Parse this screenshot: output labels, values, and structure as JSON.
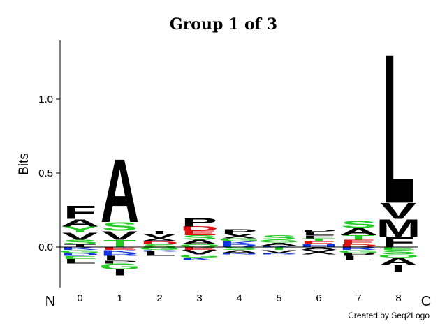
{
  "chart_data": {
    "type": "sequence-logo",
    "title": "Group 1 of 3",
    "ylabel": "Bits",
    "yticks": [
      0.0,
      0.5,
      1.0
    ],
    "ytick_labels": [
      "0.0",
      "0.5",
      "1.0"
    ],
    "ylim": [
      -0.27,
      1.4
    ],
    "positions": [
      "0",
      "1",
      "2",
      "3",
      "4",
      "5",
      "6",
      "7",
      "8"
    ],
    "n_terminal": "N",
    "c_terminal": "C",
    "credit": "Created by Seq2Logo",
    "colors": {
      "hydrophobic": "#000000",
      "polar": "#22cc22",
      "acidic": "#dd1111",
      "basic": "#1133dd"
    },
    "columns": [
      {
        "position": "0",
        "up": [
          [
            "T",
            0.02,
            "#000000"
          ],
          [
            "S",
            0.03,
            "#22cc22"
          ],
          [
            "V",
            0.05,
            "#000000"
          ],
          [
            "Y",
            0.04,
            "#22cc22"
          ],
          [
            "A",
            0.05,
            "#000000"
          ],
          [
            "F",
            0.09,
            "#000000"
          ]
        ],
        "down": [
          [
            "K",
            0.02,
            "#1133dd"
          ],
          [
            "G",
            0.02,
            "#22cc22"
          ],
          [
            "D",
            0.02,
            "#1133dd"
          ],
          [
            "E",
            0.02,
            "#22cc22"
          ],
          [
            "L",
            0.03,
            "#000000"
          ]
        ]
      },
      {
        "position": "1",
        "up": [
          [
            "T",
            0.05,
            "#22cc22"
          ],
          [
            "V",
            0.06,
            "#000000"
          ],
          [
            "S",
            0.06,
            "#22cc22"
          ],
          [
            "A",
            0.44,
            "#000000"
          ]
        ],
        "down": [
          [
            "E",
            0.02,
            "#dd1111"
          ],
          [
            "K",
            0.02,
            "#1133dd"
          ],
          [
            "R",
            0.02,
            "#1133dd"
          ],
          [
            "L",
            0.03,
            "#000000"
          ],
          [
            "P",
            0.02,
            "#000000"
          ],
          [
            "G",
            0.04,
            "#22cc22"
          ],
          [
            "I",
            0.04,
            "#000000"
          ]
        ]
      },
      {
        "position": "2",
        "up": [
          [
            "S",
            0.02,
            "#22cc22"
          ],
          [
            "D",
            0.02,
            "#dd1111"
          ],
          [
            "A",
            0.02,
            "#000000"
          ],
          [
            "V",
            0.03,
            "#000000"
          ],
          [
            "I",
            0.02,
            "#000000"
          ]
        ],
        "down": [
          [
            "G",
            0.02,
            "#22cc22"
          ],
          [
            "K",
            0.01,
            "#1133dd"
          ],
          [
            "L",
            0.03,
            "#000000"
          ]
        ]
      },
      {
        "position": "3",
        "up": [
          [
            "Q",
            0.02,
            "#22cc22"
          ],
          [
            "A",
            0.03,
            "#000000"
          ],
          [
            "S",
            0.03,
            "#22cc22"
          ],
          [
            "E",
            0.03,
            "#dd1111"
          ],
          [
            "D",
            0.03,
            "#dd1111"
          ],
          [
            "P",
            0.06,
            "#000000"
          ]
        ],
        "down": [
          [
            "E",
            0.02,
            "#dd1111"
          ],
          [
            "V",
            0.03,
            "#000000"
          ],
          [
            "G",
            0.02,
            "#22cc22"
          ],
          [
            "K",
            0.02,
            "#1133dd"
          ]
        ]
      },
      {
        "position": "4",
        "up": [
          [
            "R",
            0.02,
            "#1133dd"
          ],
          [
            "K",
            0.02,
            "#1133dd"
          ],
          [
            "G",
            0.02,
            "#22cc22"
          ],
          [
            "X",
            0.03,
            "#000000"
          ],
          [
            "P",
            0.03,
            "#000000"
          ]
        ],
        "down": [
          [
            "S",
            0.02,
            "#22cc22"
          ],
          [
            "A",
            0.02,
            "#000000"
          ],
          [
            "N",
            0.01,
            "#1133dd"
          ]
        ]
      },
      {
        "position": "5",
        "up": [
          [
            "K",
            0.01,
            "#1133dd"
          ],
          [
            "A",
            0.02,
            "#000000"
          ],
          [
            "G",
            0.02,
            "#22cc22"
          ],
          [
            "S",
            0.03,
            "#22cc22"
          ]
        ],
        "down": [
          [
            "T",
            0.02,
            "#22cc22"
          ],
          [
            "V",
            0.02,
            "#000000"
          ],
          [
            "R",
            0.01,
            "#1133dd"
          ]
        ]
      },
      {
        "position": "6",
        "up": [
          [
            "H",
            0.02,
            "#1133dd"
          ],
          [
            "E",
            0.02,
            "#dd1111"
          ],
          [
            "T",
            0.02,
            "#22cc22"
          ],
          [
            "F",
            0.02,
            "#000000"
          ],
          [
            "L",
            0.02,
            "#000000"
          ],
          [
            "P",
            0.02,
            "#000000"
          ]
        ],
        "down": [
          [
            "A",
            0.02,
            "#000000"
          ],
          [
            "X",
            0.03,
            "#000000"
          ]
        ]
      },
      {
        "position": "7",
        "up": [
          [
            "D",
            0.02,
            "#dd1111"
          ],
          [
            "E",
            0.03,
            "#dd1111"
          ],
          [
            "T",
            0.03,
            "#22cc22"
          ],
          [
            "A",
            0.05,
            "#000000"
          ],
          [
            "S",
            0.05,
            "#22cc22"
          ]
        ],
        "down": [
          [
            "R",
            0.02,
            "#1133dd"
          ],
          [
            "G",
            0.02,
            "#22cc22"
          ],
          [
            "P",
            0.02,
            "#000000"
          ],
          [
            "L",
            0.03,
            "#000000"
          ]
        ]
      },
      {
        "position": "8",
        "up": [
          [
            "F",
            0.07,
            "#000000"
          ],
          [
            "M",
            0.12,
            "#000000"
          ],
          [
            "V",
            0.11,
            "#000000"
          ],
          [
            "L",
            1.04,
            "#000000"
          ]
        ],
        "down": [
          [
            "E",
            0.02,
            "#22cc22"
          ],
          [
            "S",
            0.03,
            "#22cc22"
          ],
          [
            "Q",
            0.02,
            "#22cc22"
          ],
          [
            "A",
            0.05,
            "#000000"
          ],
          [
            "I",
            0.05,
            "#000000"
          ]
        ]
      }
    ]
  }
}
